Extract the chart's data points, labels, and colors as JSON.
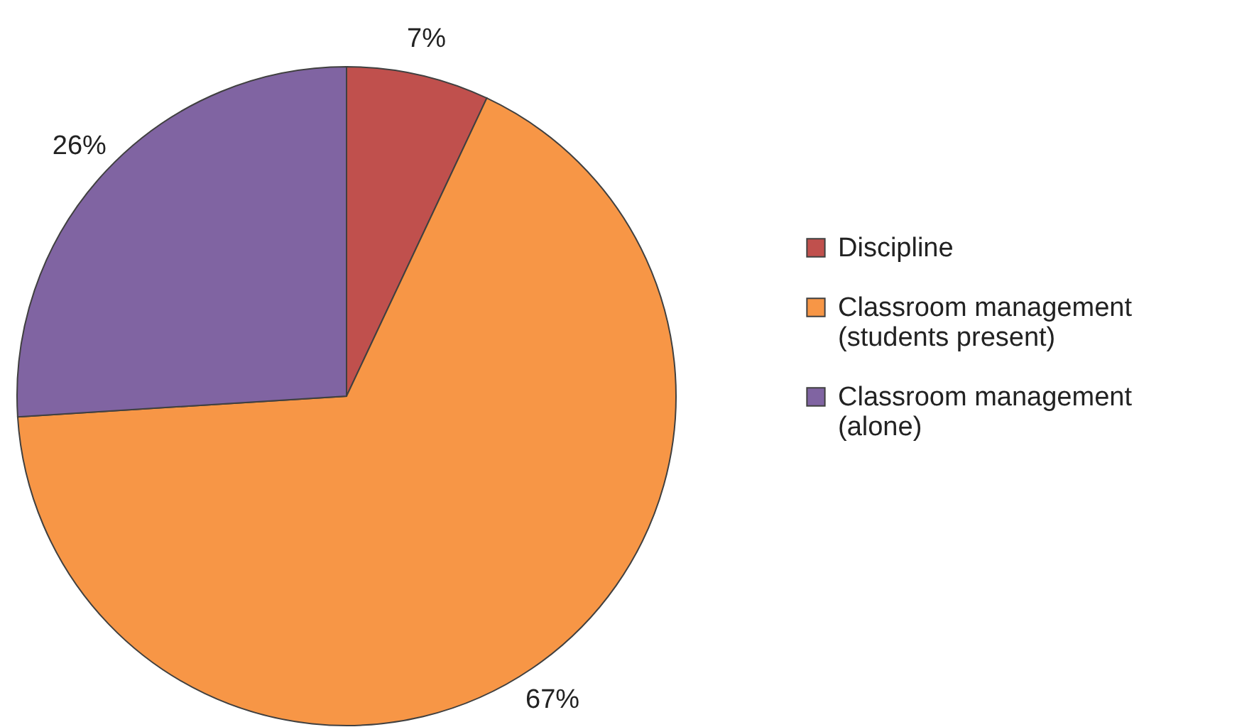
{
  "chart_data": {
    "type": "pie",
    "categories": [
      "Discipline",
      "Classroom management (students present)",
      "Classroom management (alone)"
    ],
    "values": [
      7,
      67,
      26
    ],
    "value_labels": [
      "7%",
      "67%",
      "26%"
    ],
    "colors": [
      "#c0504d",
      "#f79646",
      "#8064a2"
    ],
    "legend": "right"
  }
}
